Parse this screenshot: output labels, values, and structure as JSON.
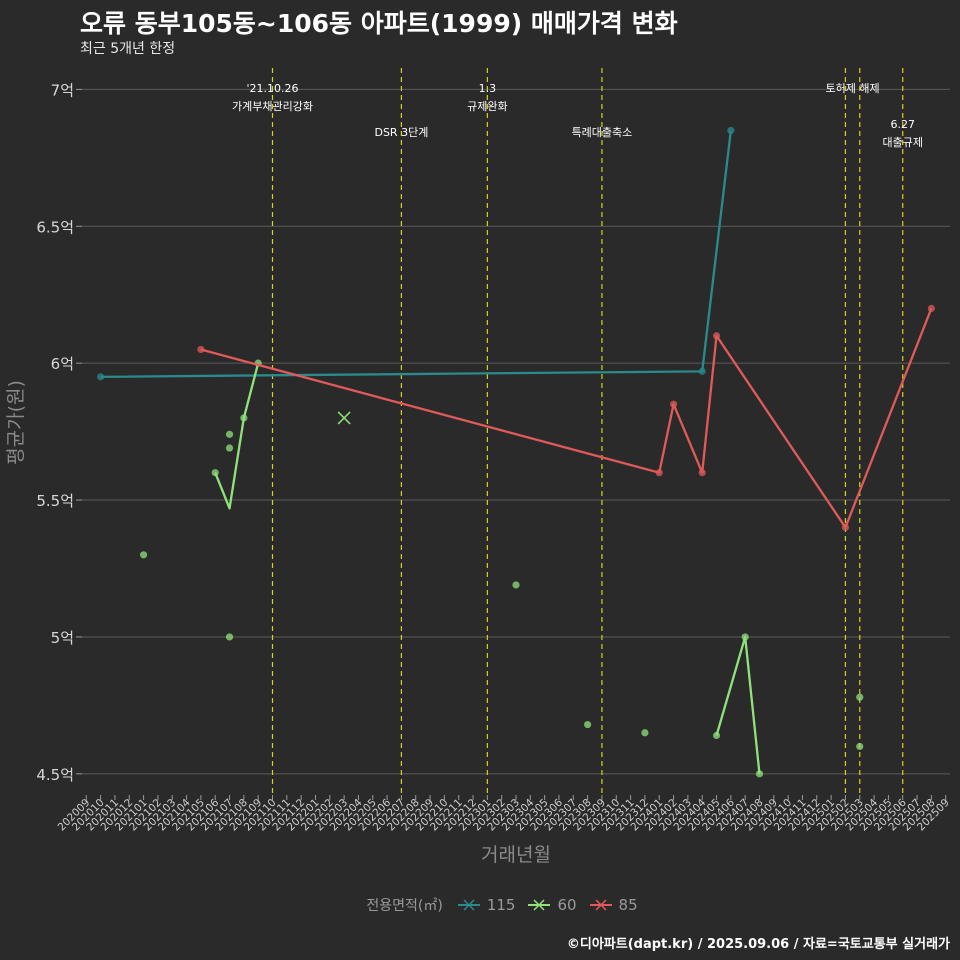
{
  "header": {
    "title": "오류 동부105동~106동 아파트(1999) 매매가격 변화",
    "subtitle": "최근 5개년 한정"
  },
  "caption": "©디아파트(dapt.kr) / 2025.09.06 / 자료=국토교통부 실거래가",
  "legend": {
    "title": "전용면적(㎡)",
    "items": [
      {
        "label": "115",
        "color": "#2a8a8c"
      },
      {
        "label": "60",
        "color": "#8fe27a"
      },
      {
        "label": "85",
        "color": "#e05a5a"
      }
    ]
  },
  "chart_data": {
    "type": "line",
    "xlabel": "거래년월",
    "ylabel": "평균가(원)",
    "ylim": [
      4.43,
      7.1
    ],
    "x_categories": [
      "202009",
      "202010",
      "202011",
      "202012",
      "202101",
      "202102",
      "202103",
      "202104",
      "202105",
      "202106",
      "202107",
      "202108",
      "202109",
      "202110",
      "202111",
      "202112",
      "202201",
      "202202",
      "202203",
      "202204",
      "202205",
      "202206",
      "202207",
      "202208",
      "202209",
      "202210",
      "202211",
      "202212",
      "202301",
      "202302",
      "202303",
      "202304",
      "202305",
      "202306",
      "202307",
      "202308",
      "202309",
      "202310",
      "202311",
      "202312",
      "202401",
      "202402",
      "202403",
      "202404",
      "202405",
      "202406",
      "202407",
      "202408",
      "202409",
      "202410",
      "202411",
      "202412",
      "202501",
      "202502",
      "202503",
      "202504",
      "202505",
      "202506",
      "202507",
      "202508",
      "202509"
    ],
    "y_ticks": [
      {
        "value": 4.5,
        "label": "4.5억"
      },
      {
        "value": 5.0,
        "label": "5억"
      },
      {
        "value": 5.5,
        "label": "5.5억"
      },
      {
        "value": 6.0,
        "label": "6억"
      },
      {
        "value": 6.5,
        "label": "6.5억"
      },
      {
        "value": 7.0,
        "label": "7억"
      }
    ],
    "series": [
      {
        "name": "115",
        "color": "#2a8a8c",
        "line": [
          [
            "202010",
            5.95
          ],
          [
            "202404",
            5.97
          ],
          [
            "202406",
            6.85
          ]
        ],
        "points": [
          [
            "202010",
            5.95
          ],
          [
            "202404",
            5.97
          ],
          [
            "202406",
            6.85
          ]
        ]
      },
      {
        "name": "60",
        "color": "#8fe27a",
        "line": [
          [
            "202106",
            5.6
          ],
          [
            "202107",
            5.47
          ],
          [
            "202108",
            5.8
          ],
          [
            "202109",
            6.0
          ],
          [
            "202405",
            4.64
          ],
          [
            "202407",
            5.0
          ],
          [
            "202408",
            4.5
          ]
        ],
        "line_breaks_after": [
          3
        ],
        "points": [
          [
            "202101",
            5.3
          ],
          [
            "202106",
            5.6
          ],
          [
            "202107",
            5.74
          ],
          [
            "202107",
            5.69
          ],
          [
            "202107",
            5.0
          ],
          [
            "202108",
            5.8
          ],
          [
            "202109",
            6.0
          ],
          [
            "202303",
            5.19
          ],
          [
            "202308",
            4.68
          ],
          [
            "202312",
            4.65
          ],
          [
            "202405",
            4.64
          ],
          [
            "202407",
            5.0
          ],
          [
            "202408",
            4.5
          ],
          [
            "202503",
            4.78
          ],
          [
            "202503",
            4.6
          ]
        ],
        "cross_markers": [
          [
            "202203",
            5.8
          ]
        ]
      },
      {
        "name": "85",
        "color": "#e05a5a",
        "line": [
          [
            "202105",
            6.05
          ],
          [
            "202401",
            5.6
          ],
          [
            "202402",
            5.85
          ],
          [
            "202404",
            5.6
          ],
          [
            "202405",
            6.1
          ],
          [
            "202502",
            5.4
          ],
          [
            "202508",
            6.2
          ]
        ],
        "points": [
          [
            "202105",
            6.05
          ],
          [
            "202401",
            5.6
          ],
          [
            "202402",
            5.85
          ],
          [
            "202404",
            5.6
          ],
          [
            "202405",
            6.1
          ],
          [
            "202502",
            5.4
          ],
          [
            "202508",
            6.2
          ]
        ]
      }
    ],
    "events": [
      {
        "x": "202110",
        "lines": [
          "'21.10.26",
          "가계부채관리강화"
        ],
        "level": 0
      },
      {
        "x": "202207",
        "lines": [
          "DSR 3단계"
        ],
        "level": 1
      },
      {
        "x": "202301",
        "lines": [
          "1.3",
          "규제완화"
        ],
        "level": 0
      },
      {
        "x": "202309",
        "lines": [
          "특례대출축소"
        ],
        "level": 1
      },
      {
        "x": "202502",
        "lines": [
          "토허제 해제"
        ],
        "level": 0,
        "label_x": "202502.5"
      },
      {
        "x": "202503",
        "lines": [],
        "level": 0
      },
      {
        "x": "202506",
        "lines": [
          "6.27",
          "대출규제"
        ],
        "level": 2
      }
    ]
  }
}
